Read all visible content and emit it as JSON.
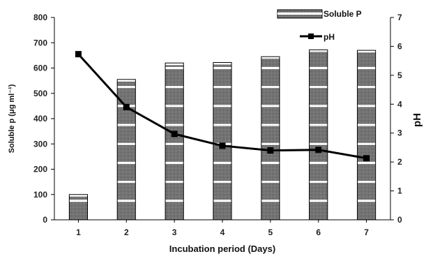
{
  "chart_data": {
    "type": "bar",
    "categories": [
      "1",
      "2",
      "3",
      "4",
      "5",
      "6",
      "7"
    ],
    "x": [
      1,
      2,
      3,
      4,
      5,
      6,
      7
    ],
    "series": [
      {
        "name": "Soluble P",
        "type": "bar",
        "axis": "left",
        "values": [
          100,
          555,
          620,
          622,
          645,
          672,
          670
        ]
      },
      {
        "name": "pH",
        "type": "line",
        "axis": "right",
        "marker": "square",
        "values": [
          5.73,
          3.9,
          2.97,
          2.56,
          2.4,
          2.42,
          2.13
        ]
      }
    ],
    "xlabel": "Incubation period (Days)",
    "ylabel": "Soluble p (μg ml⁻¹)",
    "y2label": "pH",
    "ylim": [
      0,
      800
    ],
    "y2lim": [
      0,
      7
    ],
    "yticks": [
      "0",
      "100",
      "200",
      "300",
      "400",
      "500",
      "600",
      "700",
      "800"
    ],
    "y2ticks": [
      "0",
      "1",
      "2",
      "3",
      "4",
      "5",
      "6",
      "7"
    ],
    "grid": false,
    "legend": "top-right",
    "colors": {
      "bar_fill": "#5c5c5c",
      "bar_stripe": "#ffffff",
      "line": "#000000"
    }
  }
}
